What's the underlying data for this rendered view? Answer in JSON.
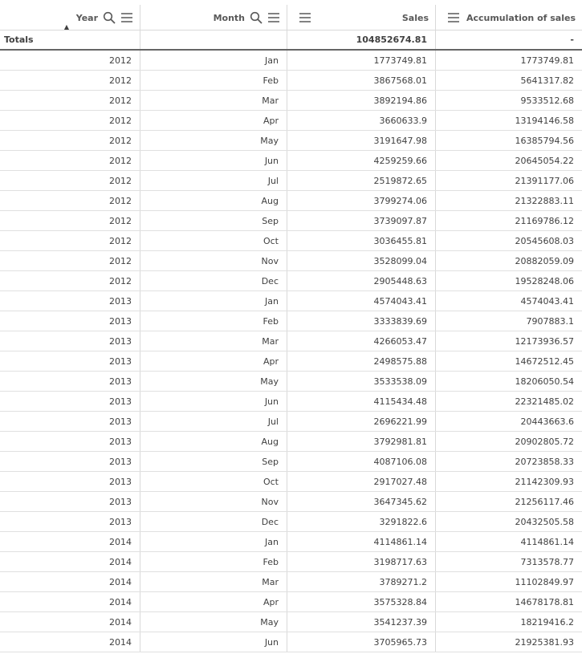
{
  "columns": [
    {
      "label": "Year",
      "search": true,
      "menu": true,
      "sorted": "ascending"
    },
    {
      "label": "Month",
      "search": true,
      "menu": true
    },
    {
      "label": "Sales",
      "menu": true
    },
    {
      "label": "Accumulation of sales",
      "menu": true
    }
  ],
  "totals": {
    "label": "Totals",
    "year": "",
    "month": "",
    "sales": "104852674.81",
    "accumulation": "-"
  },
  "rows": [
    [
      "2012",
      "Jan",
      "1773749.81",
      "1773749.81"
    ],
    [
      "2012",
      "Feb",
      "3867568.01",
      "5641317.82"
    ],
    [
      "2012",
      "Mar",
      "3892194.86",
      "9533512.68"
    ],
    [
      "2012",
      "Apr",
      "3660633.9",
      "13194146.58"
    ],
    [
      "2012",
      "May",
      "3191647.98",
      "16385794.56"
    ],
    [
      "2012",
      "Jun",
      "4259259.66",
      "20645054.22"
    ],
    [
      "2012",
      "Jul",
      "2519872.65",
      "21391177.06"
    ],
    [
      "2012",
      "Aug",
      "3799274.06",
      "21322883.11"
    ],
    [
      "2012",
      "Sep",
      "3739097.87",
      "21169786.12"
    ],
    [
      "2012",
      "Oct",
      "3036455.81",
      "20545608.03"
    ],
    [
      "2012",
      "Nov",
      "3528099.04",
      "20882059.09"
    ],
    [
      "2012",
      "Dec",
      "2905448.63",
      "19528248.06"
    ],
    [
      "2013",
      "Jan",
      "4574043.41",
      "4574043.41"
    ],
    [
      "2013",
      "Feb",
      "3333839.69",
      "7907883.1"
    ],
    [
      "2013",
      "Mar",
      "4266053.47",
      "12173936.57"
    ],
    [
      "2013",
      "Apr",
      "2498575.88",
      "14672512.45"
    ],
    [
      "2013",
      "May",
      "3533538.09",
      "18206050.54"
    ],
    [
      "2013",
      "Jun",
      "4115434.48",
      "22321485.02"
    ],
    [
      "2013",
      "Jul",
      "2696221.99",
      "20443663.6"
    ],
    [
      "2013",
      "Aug",
      "3792981.81",
      "20902805.72"
    ],
    [
      "2013",
      "Sep",
      "4087106.08",
      "20723858.33"
    ],
    [
      "2013",
      "Oct",
      "2917027.48",
      "21142309.93"
    ],
    [
      "2013",
      "Nov",
      "3647345.62",
      "21256117.46"
    ],
    [
      "2013",
      "Dec",
      "3291822.6",
      "20432505.58"
    ],
    [
      "2014",
      "Jan",
      "4114861.14",
      "4114861.14"
    ],
    [
      "2014",
      "Feb",
      "3198717.63",
      "7313578.77"
    ],
    [
      "2014",
      "Mar",
      "3789271.2",
      "11102849.97"
    ],
    [
      "2014",
      "Apr",
      "3575328.84",
      "14678178.81"
    ],
    [
      "2014",
      "May",
      "3541237.39",
      "18219416.2"
    ],
    [
      "2014",
      "Jun",
      "3705965.73",
      "21925381.93"
    ]
  ]
}
